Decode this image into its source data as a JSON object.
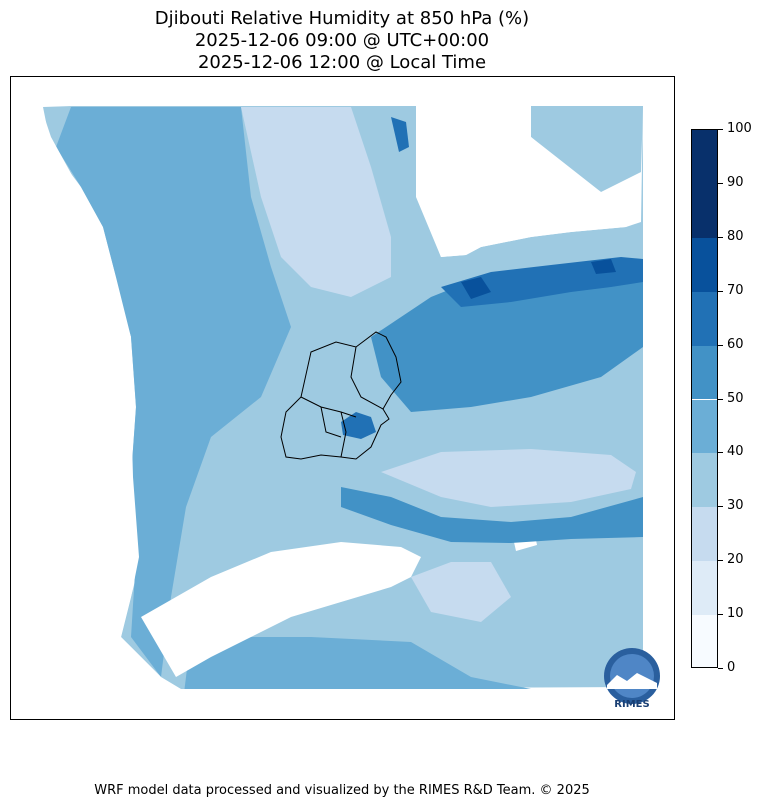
{
  "title": {
    "line1": "Djibouti Relative Humidity at 850 hPa (%)",
    "line2": "2025-12-06 09:00 @ UTC+00:00",
    "line3": "2025-12-06 12:00 @ Local Time"
  },
  "colorbar": {
    "levels": [
      0,
      10,
      20,
      30,
      40,
      50,
      60,
      70,
      80,
      90,
      100
    ],
    "tick_labels": [
      "0",
      "10",
      "20",
      "30",
      "40",
      "50",
      "60",
      "70",
      "80",
      "90",
      "100"
    ],
    "colors": [
      "#f7fbff",
      "#deebf7",
      "#c6dbef",
      "#9ecae1",
      "#6baed6",
      "#4292c6",
      "#2171b5",
      "#08519c",
      "#08306b"
    ]
  },
  "logo": {
    "text": "RIMES"
  },
  "footer": "WRF model data processed and visualized by the RIMES R&D Team. © 2025"
}
